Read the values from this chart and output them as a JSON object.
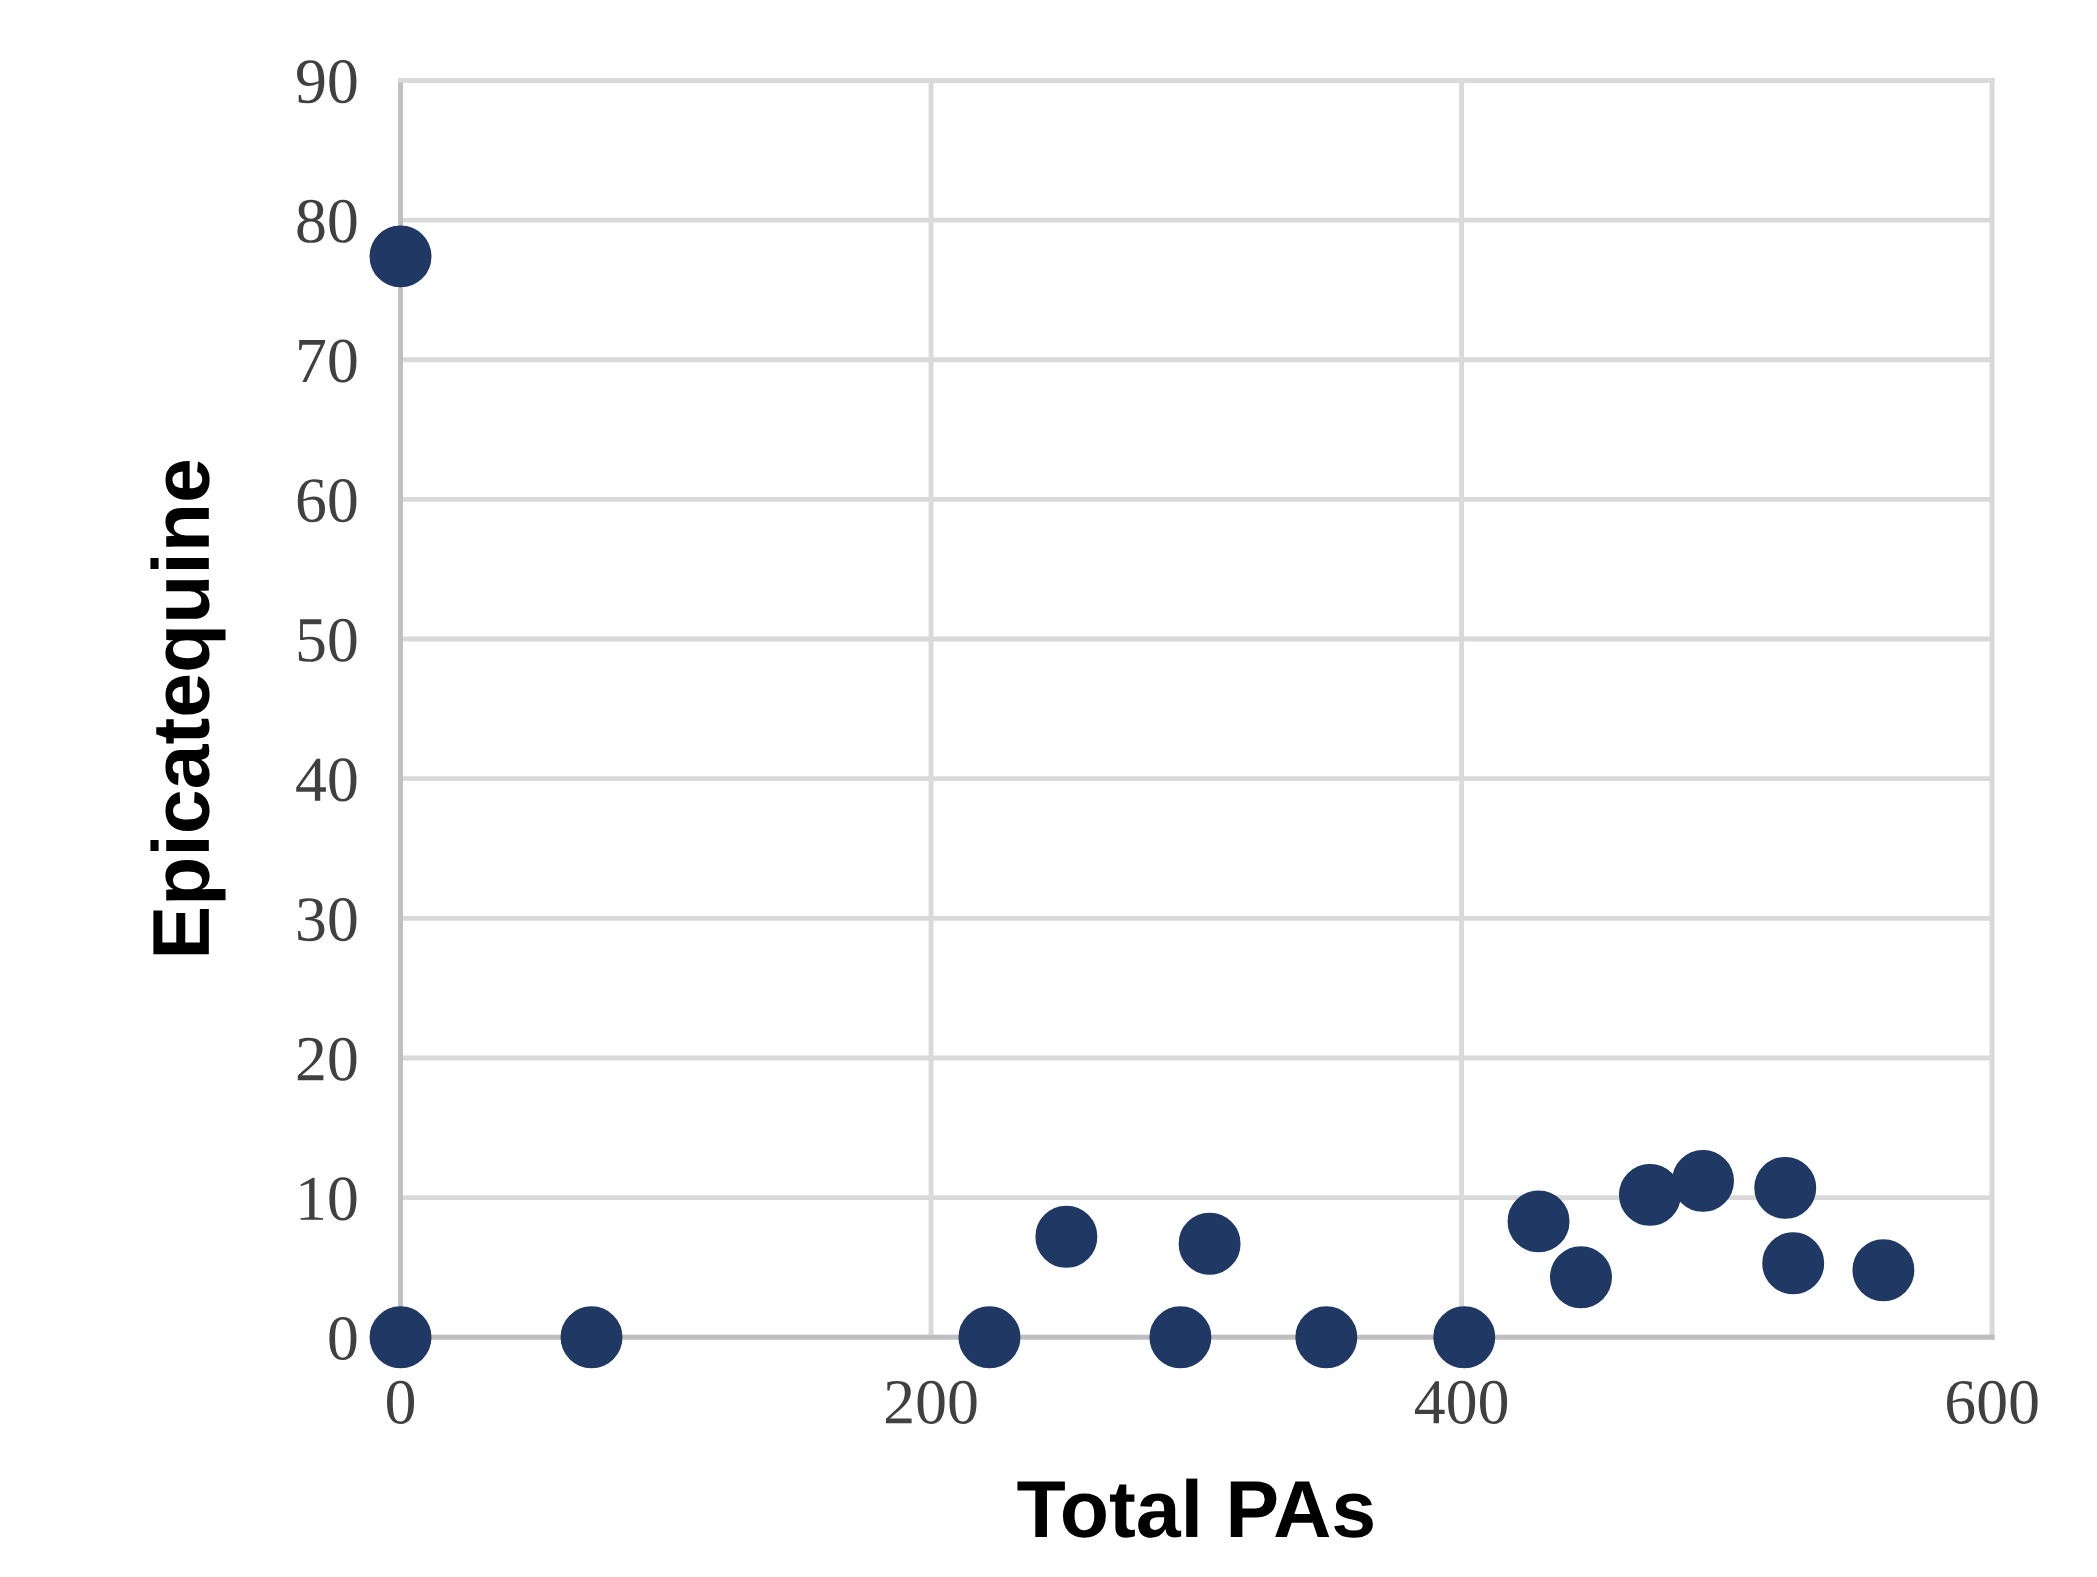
{
  "chart_data": {
    "type": "scatter",
    "xlabel": "Total PAs",
    "ylabel": "Epicatequine",
    "series": [
      {
        "color": "#1f3864",
        "x": [
          0,
          0,
          72,
          222,
          251,
          294,
          305,
          349,
          401,
          429,
          445,
          471,
          491,
          522,
          525,
          559
        ],
        "values": [
          77.4,
          0,
          0,
          0,
          7.2,
          0,
          6.7,
          0,
          0,
          8.3,
          4.3,
          10.2,
          11.2,
          10.7,
          5.3,
          4.8
        ]
      }
    ],
    "xlim": [
      0,
      600
    ],
    "xticks": [
      0,
      200,
      400,
      600
    ],
    "ylim": [
      0,
      90
    ],
    "yticks": [
      0,
      10,
      20,
      30,
      40,
      50,
      60,
      70,
      80,
      90
    ],
    "grid": true,
    "marker": "circle"
  }
}
